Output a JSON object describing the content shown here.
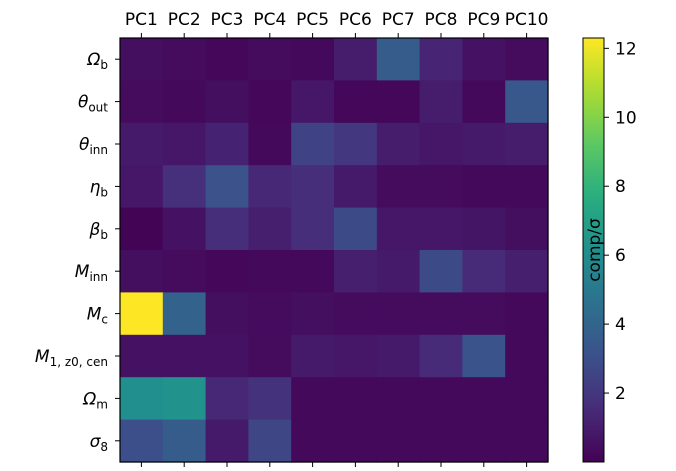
{
  "chart_data": {
    "type": "heatmap",
    "columns": [
      "PC1",
      "PC2",
      "PC3",
      "PC4",
      "PC5",
      "PC6",
      "PC7",
      "PC8",
      "PC9",
      "PC10"
    ],
    "rows": [
      {
        "label": "Ω_b",
        "base": "Ω",
        "sub": "b"
      },
      {
        "label": "θ_out",
        "base": "θ",
        "sub": "out"
      },
      {
        "label": "θ_inn",
        "base": "θ",
        "sub": "inn"
      },
      {
        "label": "η_b",
        "base": "η",
        "sub": "b"
      },
      {
        "label": "β_b",
        "base": "β",
        "sub": "b"
      },
      {
        "label": "M_inn",
        "base": "M",
        "sub": "inn"
      },
      {
        "label": "M_c",
        "base": "M",
        "sub": "c"
      },
      {
        "label": "M_1,z0,cen",
        "base": "M",
        "sub": "1, z0, cen"
      },
      {
        "label": "Ω_m",
        "base": "Ω",
        "sub": "m"
      },
      {
        "label": "σ_8",
        "base": "σ",
        "sub": "8"
      }
    ],
    "values": [
      [
        0.5,
        0.4,
        0.2,
        0.4,
        0.3,
        1.0,
        3.6,
        1.3,
        0.6,
        0.4
      ],
      [
        0.4,
        0.3,
        0.5,
        0.2,
        0.8,
        0.2,
        0.2,
        1.0,
        0.3,
        3.4
      ],
      [
        0.9,
        0.8,
        1.2,
        0.3,
        2.5,
        2.0,
        1.0,
        0.8,
        0.9,
        1.0
      ],
      [
        0.8,
        1.7,
        3.1,
        1.4,
        1.6,
        0.9,
        0.4,
        0.4,
        0.3,
        0.3
      ],
      [
        0.1,
        0.6,
        1.6,
        1.1,
        1.6,
        2.8,
        0.8,
        0.8,
        0.7,
        0.5
      ],
      [
        0.5,
        0.4,
        0.2,
        0.3,
        0.3,
        1.1,
        0.9,
        2.8,
        1.5,
        1.1
      ],
      [
        12.3,
        3.9,
        0.5,
        0.4,
        0.5,
        0.4,
        0.4,
        0.4,
        0.4,
        0.3
      ],
      [
        0.6,
        0.6,
        0.6,
        0.4,
        0.9,
        0.8,
        0.9,
        1.5,
        3.2,
        0.3
      ],
      [
        6.1,
        6.3,
        1.4,
        1.8,
        0.3,
        0.3,
        0.3,
        0.3,
        0.3,
        0.3
      ],
      [
        3.0,
        3.6,
        0.9,
        2.6,
        0.3,
        0.3,
        0.3,
        0.3,
        0.3,
        0.3
      ]
    ],
    "colorbar": {
      "label": "comp/σ",
      "min": 0.0,
      "max": 12.3,
      "ticks": [
        2,
        4,
        6,
        8,
        10,
        12
      ],
      "colormap": "viridis"
    }
  }
}
